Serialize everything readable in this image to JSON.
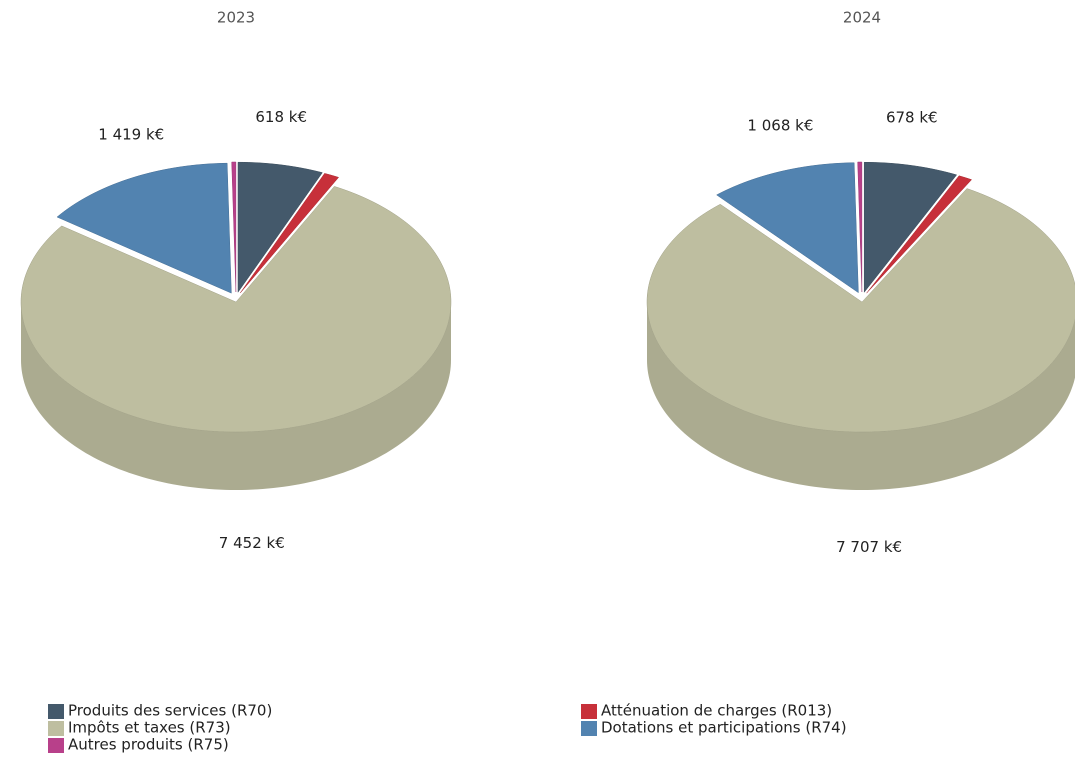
{
  "chart_data": [
    {
      "type": "pie",
      "title": "2023",
      "categories": [
        "Produits des services (R70)",
        "Atténuation de charges (R013)",
        "Impôts et taxes (R73)",
        "Dotations et participations (R74)",
        "Autres produits (R75)"
      ],
      "colors": [
        "#44596b",
        "#c7303a",
        "#bebea0",
        "#5283b0",
        "#b8408a"
      ],
      "values": [
        618,
        110,
        7452,
        1419,
        30
      ],
      "value_labels": [
        "618 k€",
        null,
        "7 452 k€",
        "1 419 k€",
        null
      ]
    },
    {
      "type": "pie",
      "title": "2024",
      "categories": [
        "Produits des services (R70)",
        "Atténuation de charges (R013)",
        "Impôts et taxes (R73)",
        "Dotations et participations (R74)",
        "Autres produits (R75)"
      ],
      "colors": [
        "#44596b",
        "#c7303a",
        "#bebea0",
        "#5283b0",
        "#b8408a"
      ],
      "values": [
        678,
        100,
        7707,
        1068,
        30
      ],
      "value_labels": [
        "678 k€",
        null,
        "7 707 k€",
        "1 068 k€",
        null
      ]
    }
  ]
}
